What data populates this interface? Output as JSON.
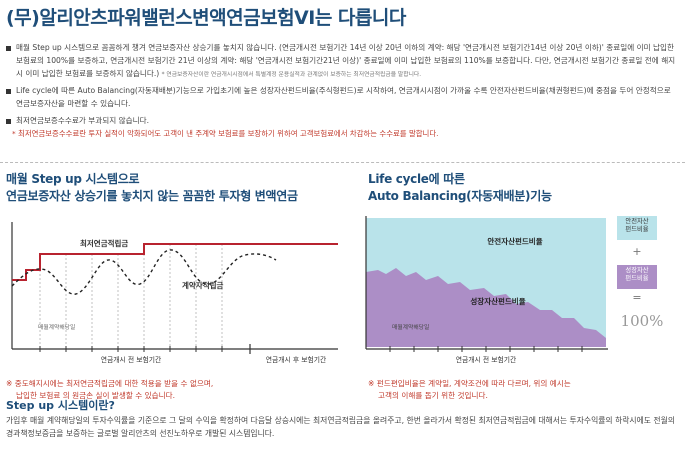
{
  "title": "(무)알리안츠파워밸런스변액연금보험VI는 다릅니다",
  "bullets": [
    {
      "text": "매월 Step up 시스템으로 꼼꼼하게 챙겨 연금보증자산 상승기를 놓치지 않습니다. (연금개시전 보험기간 14년 이상 20년 이하의 계약: 해당 '연금개시전 보험기간14년 이상 20년 이하)' 종료일에 이미 납입한 보험료의 100%를 보증하고, 연금개시전 보험기간 21년 이상의 계약: 해당 '연금개시전 보험기간21년 이상)' 종료일에 이미 납입한 보험료의 110%를 보증합니다. 다만, 연금개시전 보험기간 종료일 전에 해지시 이미 납입한 보험료를 보증하지 않습니다.)",
      "small": "* 연금보증자산이란 연금개시시점에서 특별계정 운용실적과 관계없이 보증하는 최저연금적립금을 말합니다."
    },
    {
      "text": "Life cycle에 따른 Auto Balancing(자동재배분)기능으로 가입초기에 높은 성장자산펀드비율(주식형펀드)로 시작하여, 연금개시시점이 가까울 수록 안전자산펀드비율(채권형펀드)에 중점을 두어 안정적으로 연금보증자산을 마련할 수 있습니다.",
      "small": ""
    },
    {
      "text": "최저연금보증수수료가 부과되지 않습니다.",
      "small": ""
    }
  ],
  "red_note": "* 최저연금보증수수료란 투자 실적이 악화되어도 고객이 낸 주계약 보험료를 보장하기 위하여 고객보험료에서 차감하는 수수료를 말합니다.",
  "left": {
    "title_line1": "매월 Step up 시스템으로",
    "title_line2": "연금보증자산 상승기를 놓치지 않는 꼼꼼한 투자형 변액연금",
    "label_min": "최저연금적립금",
    "label_contract": "계약자적립금",
    "label_tick": "매월계약해당일",
    "axis_before": "연금개시 전 보험기간",
    "axis_after": "연금개시 후 보험기간",
    "note_line1": "※ 중도해지시에는 최저연금적립금에 대한 적용을 받을 수 없으며,",
    "note_line2": "납입한 보험료 의 원금손 실이 발생할 수 있습니다."
  },
  "right": {
    "title_line1": "Life cycle에 따른",
    "title_line2": "Auto Balancing(자동재배분)기능",
    "label_safe": "안전자산펀드비율",
    "label_growth": "성장자산펀드비율",
    "label_tick": "매월계약해당일",
    "axis_before": "연금개시 전 보험기간",
    "legend_safe_line1": "안전자산",
    "legend_safe_line2": "펀드비율",
    "legend_growth_line1": "성장자산",
    "legend_growth_line2": "펀드비율",
    "plus": "+",
    "equals": "=",
    "total": "100%",
    "note_line1": "※ 펀드편입비율은 계약일, 계약조건에 따라 다르며, 위의 예시는",
    "note_line2": "고객의 이해를 돕기 위한 것입니다."
  },
  "step": {
    "title": "Step up 시스템이란?",
    "desc": "가입후 매월 계약해당일의 투자수익률을 기준으로 그 달의 수익을 확정하여 다음달 상승시에는 최저연금적립금을 올려주고, 한번 올라가서 확정된 최저연금적립금에 대해서는 투자수익률의 하락시에도 전월의 경과책정보증금을 보증하는 글로벌 알리안츠의 선진노하우로 개발된 시스템입니다."
  },
  "colors": {
    "title": "#1f4e79",
    "red_line": "#b8232f",
    "safe_fill": "#b9e3ea",
    "growth_fill": "#ac8ec6",
    "note_red": "#c0392b"
  }
}
